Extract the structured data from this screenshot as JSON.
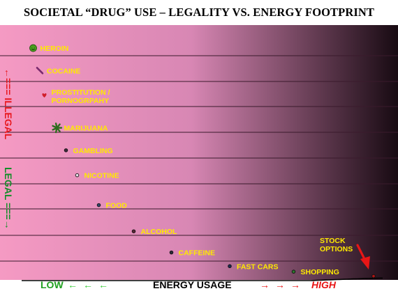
{
  "title": "SOCIETAL “DRUG” USE – LEGALITY VS. ENERGY FOOTPRINT",
  "y_axis": {
    "illegal_label": "←=== ILLEGAL",
    "legal_label": "LEGAL ===→",
    "illegal_color": "#e8171d",
    "legal_color": "#138d29"
  },
  "x_axis": {
    "low_label": "LOW",
    "low_arrows": "←←←",
    "label": "ENERGY USAGE",
    "high_arrows": "→→→",
    "high_label": "HIGH"
  },
  "colors": {
    "background_left": "#f59ac3",
    "background_mid": "#d887b4",
    "background_right": "#170a12",
    "label_text": "#ffea00",
    "curve": "#000000",
    "callout_arrow": "#e81616"
  },
  "chart_data": {
    "type": "scatter",
    "title": "SOCIETAL “DRUG” USE – LEGALITY VS. ENERGY FOOTPRINT",
    "xlabel": "ENERGY USAGE",
    "ylabel": "ILLEGAL / LEGAL",
    "xlim": [
      0,
      100
    ],
    "ylim": [
      0,
      100
    ],
    "grid": "horizontal",
    "series_curve": "decreasing-convex",
    "points": [
      {
        "label": "HEROIN",
        "x": 2.5,
        "y": 93,
        "marker": "smiley-icon",
        "color": "#4aa01e"
      },
      {
        "label": "COCAINE",
        "x": 4.4,
        "y": 84,
        "marker": "syringe-icon",
        "color": "#7a2a6e"
      },
      {
        "label": "PROSTITUTION /\nPORNOGRPAHY",
        "x": 5.7,
        "y": 74,
        "marker": "heart-icon",
        "color": "#d01f2b"
      },
      {
        "label": "MARIJUANA",
        "x": 9.3,
        "y": 61,
        "marker": "leaf-icon",
        "color": "#2e6d1e"
      },
      {
        "label": "GAMBLING",
        "x": 11.9,
        "y": 52,
        "marker": "dot-icon",
        "color": "#3b2a3a"
      },
      {
        "label": "NICOTINE",
        "x": 15.1,
        "y": 42,
        "marker": "dot-icon",
        "color": "#e6e1e8"
      },
      {
        "label": "FOOD",
        "x": 21.3,
        "y": 30,
        "marker": "dot-icon",
        "color": "#33476b"
      },
      {
        "label": "ALCOHOL",
        "x": 31.3,
        "y": 19.5,
        "marker": "dot-icon",
        "color": "#5a2636"
      },
      {
        "label": "CAFFEINE",
        "x": 42.1,
        "y": 11,
        "marker": "dot-icon",
        "color": "#2c2a3a"
      },
      {
        "label": "FAST CARS",
        "x": 58.8,
        "y": 5.5,
        "marker": "dot-icon",
        "color": "#1d2a55"
      },
      {
        "label": "SHOPPING",
        "x": 77.1,
        "y": 3.3,
        "marker": "dot-icon",
        "color": "#2d7a2d"
      },
      {
        "label": "STOCK\nOPTIONS",
        "x": 100,
        "y": 1.5,
        "marker": "dot-icon",
        "color": "#b01515"
      }
    ]
  }
}
